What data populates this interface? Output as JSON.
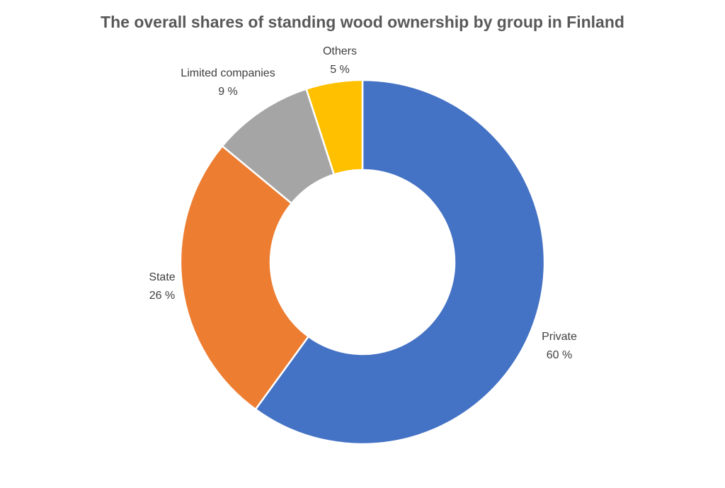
{
  "chart_data": {
    "type": "pie",
    "variant": "doughnut",
    "title": "The overall shares of standing wood ownership by group in Finland",
    "slices": [
      {
        "label": "Private",
        "value": 60,
        "value_label": "60 %",
        "color": "#4472C4"
      },
      {
        "label": "State",
        "value": 26,
        "value_label": "26 %",
        "color": "#ED7D31"
      },
      {
        "label": "Limited companies",
        "value": 9,
        "value_label": "9 %",
        "color": "#A5A5A5"
      },
      {
        "label": "Others",
        "value": 5,
        "value_label": "5 %",
        "color": "#FFC000"
      }
    ],
    "start_angle": "12 o'clock",
    "direction": "clockwise",
    "legend": "none"
  }
}
